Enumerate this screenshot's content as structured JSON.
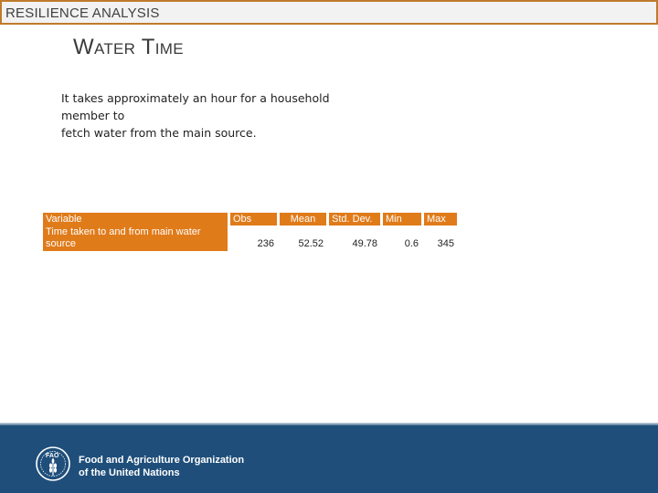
{
  "header": {
    "label": "RESILIENCE ANALYSIS"
  },
  "slide": {
    "title": "Water Time",
    "body_lines": [
      "It takes approximately an hour for a household member to",
      "fetch water from the main source."
    ]
  },
  "table": {
    "headers": [
      "Variable",
      "Obs",
      "Mean",
      "Std. Dev.",
      "Min",
      "Max"
    ],
    "rows": [
      {
        "variable": "Time taken to and from main water source",
        "obs": "236",
        "mean": "52.52",
        "std_dev": "49.78",
        "min": "0.6",
        "max": "345"
      }
    ]
  },
  "footer": {
    "logo_text": "FAO",
    "org_line1": "Food and Agriculture Organization",
    "org_line2": "of the United Nations",
    "background_color": "#1f4e7a"
  },
  "colors": {
    "accent": "#e07b1a",
    "header_border": "#c07a2c"
  }
}
